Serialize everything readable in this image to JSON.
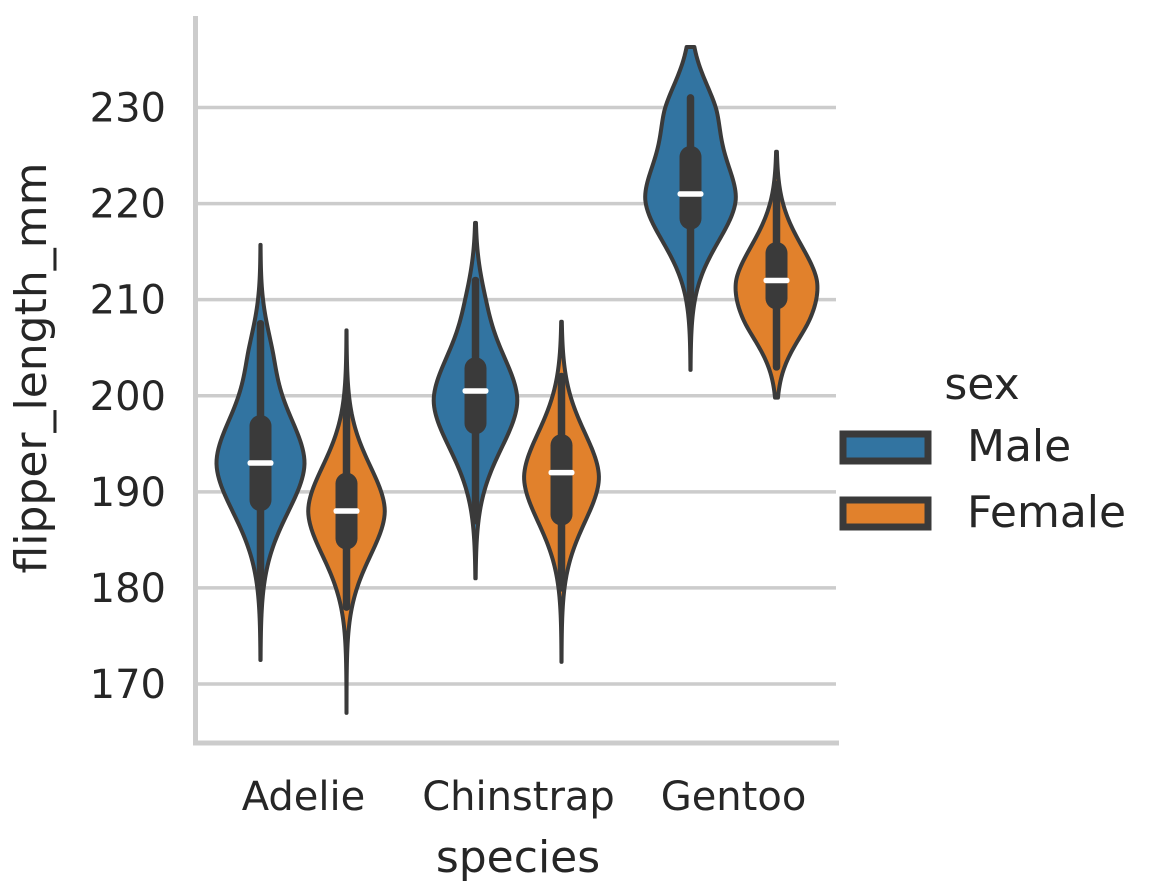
{
  "chart_data": {
    "type": "violin",
    "title": "",
    "xlabel": "species",
    "ylabel": "flipper_length_mm",
    "categories": [
      "Adelie",
      "Chinstrap",
      "Gentoo"
    ],
    "yticks": [
      230,
      220,
      210,
      200,
      190,
      180,
      170
    ],
    "ylim": [
      163.9,
      239.5
    ],
    "grid": true,
    "legend": {
      "title": "sex",
      "position": "right",
      "entries": [
        {
          "label": "Male",
          "color": "#3274a1"
        },
        {
          "label": "Female",
          "color": "#e1812c"
        }
      ]
    },
    "style": {
      "edge_color": "#3a3a3a",
      "grid_color": "#cccccc",
      "spine_color": "#cccccc",
      "median_color": "#ffffff",
      "text_color": "#262626"
    },
    "violins": [
      {
        "species": "Adelie",
        "sex": "Male",
        "median": 193,
        "q1": 188,
        "q3": 198,
        "whisker_low": 179,
        "whisker_high": 207.5,
        "kde_min": 172.5,
        "kde_max": 215.7,
        "rel_width": 1.0,
        "components": [
          [
            193,
            5.3,
            1
          ],
          [
            204.5,
            3.3,
            0.16
          ]
        ]
      },
      {
        "species": "Adelie",
        "sex": "Female",
        "median": 188,
        "q1": 184,
        "q3": 192,
        "whisker_low": 178,
        "whisker_high": 200.5,
        "kde_min": 167.0,
        "kde_max": 206.8,
        "rel_width": 0.87,
        "components": [
          [
            188,
            4.8,
            1
          ]
        ]
      },
      {
        "species": "Chinstrap",
        "sex": "Male",
        "median": 200.5,
        "q1": 196,
        "q3": 204,
        "whisker_low": 187,
        "whisker_high": 212,
        "kde_min": 181.0,
        "kde_max": 218.0,
        "rel_width": 0.95,
        "components": [
          [
            199.5,
            5.1,
            1
          ],
          [
            210,
            3.2,
            0.1
          ]
        ]
      },
      {
        "species": "Chinstrap",
        "sex": "Female",
        "median": 192,
        "q1": 186.5,
        "q3": 196,
        "whisker_low": 180,
        "whisker_high": 202,
        "kde_min": 172.3,
        "kde_max": 207.7,
        "rel_width": 0.85,
        "components": [
          [
            191.5,
            4.8,
            1
          ]
        ]
      },
      {
        "species": "Gentoo",
        "sex": "Male",
        "median": 221,
        "q1": 217.3,
        "q3": 226,
        "whisker_low": 208.5,
        "whisker_high": 231,
        "kde_min": 202.7,
        "kde_max": 236.3,
        "rel_width": 1.03,
        "components": [
          [
            220.5,
            4.6,
            1
          ],
          [
            229.8,
            3.4,
            0.42
          ]
        ]
      },
      {
        "species": "Gentoo",
        "sex": "Female",
        "median": 212,
        "q1": 209,
        "q3": 216,
        "whisker_low": 203,
        "whisker_high": 222,
        "kde_min": 199.8,
        "kde_max": 225.4,
        "rel_width": 0.93,
        "components": [
          [
            212,
            4.1,
            1
          ],
          [
            207.5,
            3.0,
            0.3
          ]
        ]
      }
    ]
  }
}
